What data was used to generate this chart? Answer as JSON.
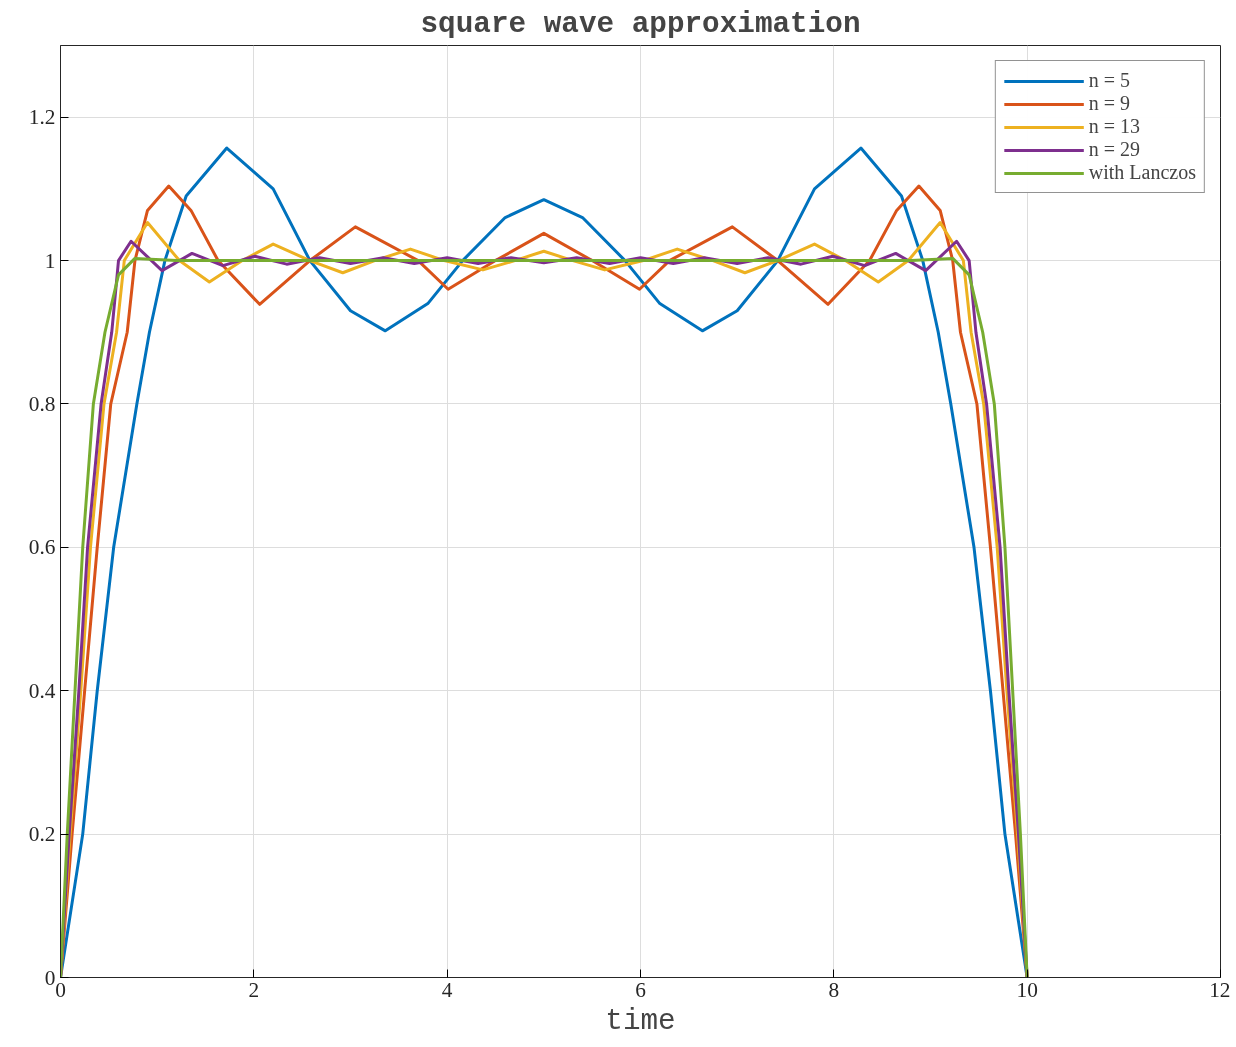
{
  "chart_data": {
    "type": "line",
    "title": "square wave approximation",
    "xlabel": "time",
    "xlim": [
      0,
      12
    ],
    "xticks": [
      0,
      2,
      4,
      6,
      8,
      10,
      12
    ],
    "ylim": [
      0,
      1.3
    ],
    "yticks": [
      0,
      {
        "value": 0.2,
        "label": "0.2"
      },
      {
        "value": 0.4,
        "label": "0.4"
      },
      {
        "value": 0.6,
        "label": "0.6"
      },
      {
        "value": 0.8,
        "label": "0.8"
      },
      1,
      {
        "value": 1.2,
        "label": "1.2"
      }
    ],
    "grid": true,
    "legend": "top right",
    "line_style": "solid",
    "marker": "none",
    "series": [
      {
        "name": "n = 5",
        "color": "#0072bd",
        "x": [
          0,
          0.23,
          0.38,
          0.55,
          0.79,
          0.92,
          1.08,
          1.3,
          1.72,
          2.2,
          2.58,
          3.0,
          3.36,
          3.8,
          4.16,
          4.6,
          5,
          5.4,
          5.84,
          6.2,
          6.64,
          7.0,
          7.42,
          7.8,
          8.28,
          8.7,
          8.92,
          9.08,
          9.21,
          9.45,
          9.62,
          9.77,
          10
        ],
        "values": [
          0,
          0.2,
          0.4,
          0.6,
          0.8,
          0.9,
          1.0,
          1.09,
          1.157,
          1.1,
          1.0,
          0.93,
          0.902,
          0.94,
          1.0,
          1.06,
          1.085,
          1.06,
          1.0,
          0.94,
          0.902,
          0.93,
          1.0,
          1.1,
          1.157,
          1.09,
          1.0,
          0.9,
          0.8,
          0.6,
          0.4,
          0.2,
          0
        ]
      },
      {
        "name": "n = 9",
        "color": "#d95319",
        "x": [
          0,
          0.12,
          0.25,
          0.38,
          0.52,
          0.69,
          0.77,
          0.9,
          1.12,
          1.35,
          1.63,
          2.06,
          2.58,
          3.05,
          3.7,
          4.01,
          4.5,
          5,
          5.5,
          5.99,
          6.3,
          6.95,
          7.42,
          7.94,
          8.37,
          8.65,
          8.88,
          9.1,
          9.23,
          9.31,
          9.48,
          9.62,
          9.75,
          9.88,
          10
        ],
        "values": [
          0,
          0.2,
          0.4,
          0.6,
          0.8,
          0.9,
          1.0,
          1.07,
          1.104,
          1.07,
          1.0,
          0.939,
          1.0,
          1.047,
          1.0,
          0.96,
          1.0,
          1.038,
          1.0,
          0.96,
          1.0,
          1.047,
          1.0,
          0.939,
          1.0,
          1.07,
          1.104,
          1.07,
          1.0,
          0.9,
          0.8,
          0.6,
          0.4,
          0.2,
          0
        ]
      },
      {
        "name": "n = 13",
        "color": "#edb120",
        "x": [
          0,
          0.1,
          0.21,
          0.31,
          0.45,
          0.58,
          0.66,
          0.9,
          1.23,
          1.54,
          1.88,
          2.2,
          2.58,
          2.92,
          3.25,
          3.62,
          3.97,
          4.37,
          4.7,
          5,
          5.3,
          5.63,
          6.03,
          6.38,
          6.75,
          7.08,
          7.42,
          7.8,
          8.12,
          8.46,
          8.77,
          9.1,
          9.34,
          9.42,
          9.55,
          9.69,
          9.79,
          9.9,
          10
        ],
        "values": [
          0,
          0.2,
          0.4,
          0.6,
          0.8,
          0.9,
          1.0,
          1.053,
          1.0,
          0.97,
          1.0,
          1.023,
          1.0,
          0.983,
          1.0,
          1.016,
          1.0,
          0.987,
          1.0,
          1.013,
          1.0,
          0.987,
          1.0,
          1.016,
          1.0,
          0.983,
          1.0,
          1.023,
          1.0,
          0.97,
          1.0,
          1.053,
          1.0,
          0.9,
          0.8,
          0.6,
          0.4,
          0.2,
          0
        ]
      },
      {
        "name": "n = 29",
        "color": "#7e2f8e",
        "x": [
          0,
          0.09,
          0.19,
          0.28,
          0.42,
          0.53,
          0.6,
          0.73,
          1.05,
          1.36,
          1.68,
          2.01,
          2.34,
          2.68,
          3.0,
          3.34,
          3.66,
          4.0,
          4.32,
          4.66,
          5,
          5.34,
          5.68,
          6.0,
          6.34,
          6.66,
          7.0,
          7.32,
          7.66,
          7.99,
          8.32,
          8.64,
          8.95,
          9.27,
          9.4,
          9.47,
          9.58,
          9.72,
          9.81,
          9.91,
          10
        ],
        "values": [
          0,
          0.2,
          0.4,
          0.6,
          0.8,
          0.9,
          1.0,
          1.027,
          0.986,
          1.01,
          0.993,
          1.006,
          0.995,
          1.004,
          0.996,
          1.004,
          0.996,
          1.004,
          0.996,
          1.004,
          0.997,
          1.004,
          0.996,
          1.004,
          0.996,
          1.004,
          0.996,
          1.004,
          0.995,
          1.006,
          0.993,
          1.01,
          0.986,
          1.027,
          1.0,
          0.9,
          0.8,
          0.6,
          0.4,
          0.2,
          0
        ]
      },
      {
        "name": "with Lanczos",
        "color": "#77ac30",
        "x": [
          0,
          0.07,
          0.15,
          0.23,
          0.34,
          0.46,
          0.6,
          0.77,
          1.2,
          5,
          8.8,
          9.23,
          9.4,
          9.54,
          9.66,
          9.77,
          9.85,
          9.93,
          10
        ],
        "values": [
          0,
          0.2,
          0.4,
          0.6,
          0.8,
          0.9,
          0.98,
          1.003,
          1.0,
          1.0,
          1.0,
          1.003,
          0.98,
          0.9,
          0.8,
          0.6,
          0.4,
          0.2,
          0
        ]
      }
    ]
  }
}
